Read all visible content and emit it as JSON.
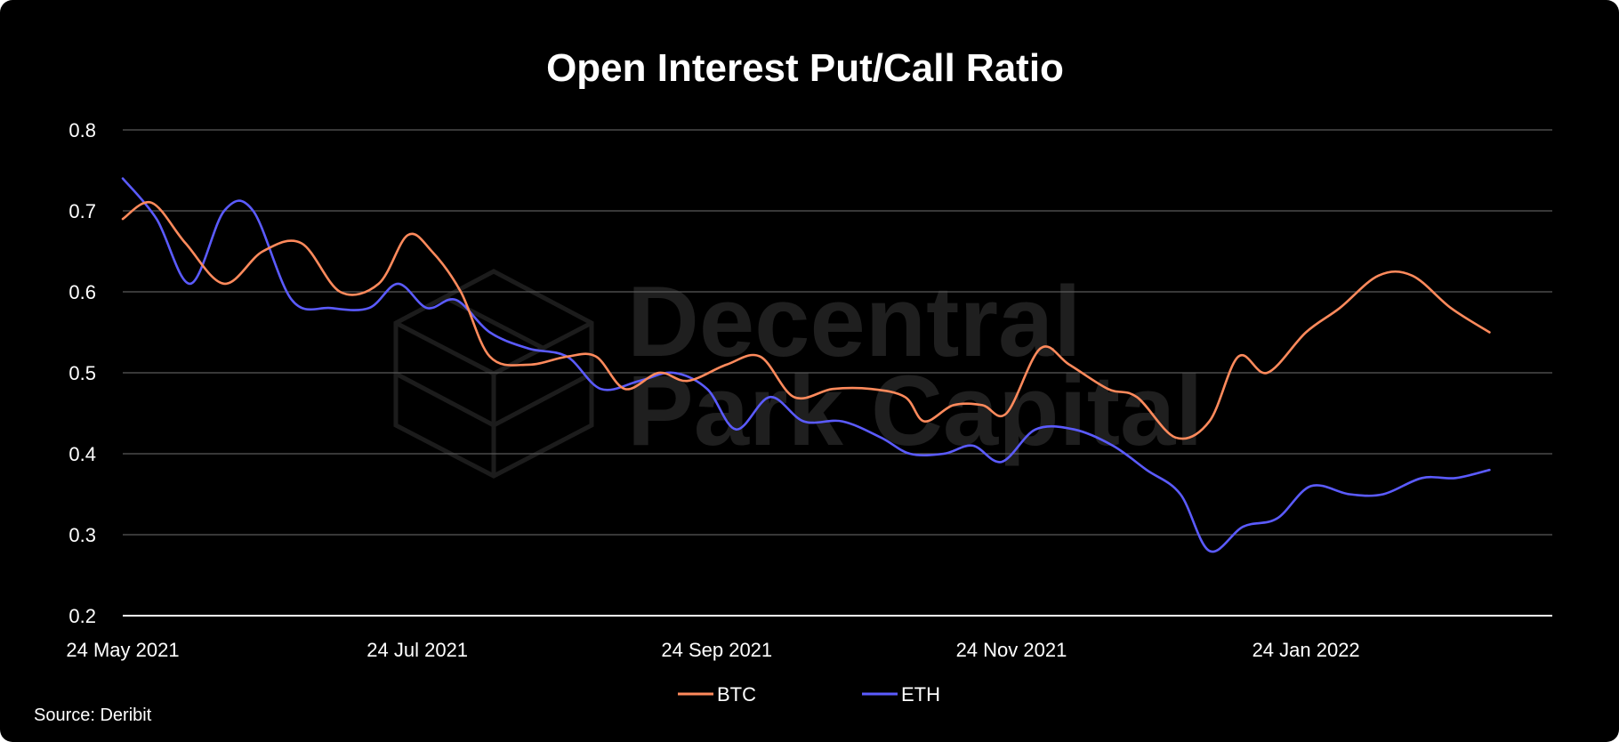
{
  "chart_data": {
    "type": "line",
    "title": "Open Interest Put/Call Ratio",
    "xlabel": "",
    "ylabel": "",
    "ylim": [
      0.2,
      0.8
    ],
    "yticks": [
      "0.2",
      "0.3",
      "0.4",
      "0.5",
      "0.6",
      "0.7",
      "0.8"
    ],
    "xlim": [
      "2021-05-24",
      "2022-03-16"
    ],
    "xticks": [
      {
        "date": "2021-05-24",
        "label": "24 May 2021"
      },
      {
        "date": "2021-07-24",
        "label": "24 Jul 2021"
      },
      {
        "date": "2021-09-24",
        "label": "24 Sep 2021"
      },
      {
        "date": "2021-11-24",
        "label": "24 Nov 2021"
      },
      {
        "date": "2022-01-24",
        "label": "24 Jan 2022"
      }
    ],
    "grid": true,
    "legend": "bottom-center",
    "series": [
      {
        "name": "BTC",
        "color": "#ff8a5c",
        "points": [
          [
            "2021-05-24",
            0.69
          ],
          [
            "2021-05-30",
            0.71
          ],
          [
            "2021-06-06",
            0.66
          ],
          [
            "2021-06-14",
            0.61
          ],
          [
            "2021-06-22",
            0.65
          ],
          [
            "2021-06-30",
            0.66
          ],
          [
            "2021-07-08",
            0.6
          ],
          [
            "2021-07-16",
            0.61
          ],
          [
            "2021-07-22",
            0.67
          ],
          [
            "2021-07-27",
            0.65
          ],
          [
            "2021-08-02",
            0.6
          ],
          [
            "2021-08-08",
            0.52
          ],
          [
            "2021-08-16",
            0.51
          ],
          [
            "2021-08-24",
            0.52
          ],
          [
            "2021-08-30",
            0.52
          ],
          [
            "2021-09-05",
            0.48
          ],
          [
            "2021-09-12",
            0.5
          ],
          [
            "2021-09-18",
            0.49
          ],
          [
            "2021-09-26",
            0.51
          ],
          [
            "2021-10-03",
            0.52
          ],
          [
            "2021-10-10",
            0.47
          ],
          [
            "2021-10-18",
            0.48
          ],
          [
            "2021-10-26",
            0.48
          ],
          [
            "2021-11-02",
            0.47
          ],
          [
            "2021-11-06",
            0.44
          ],
          [
            "2021-11-12",
            0.46
          ],
          [
            "2021-11-18",
            0.46
          ],
          [
            "2021-11-23",
            0.45
          ],
          [
            "2021-11-30",
            0.53
          ],
          [
            "2021-12-06",
            0.51
          ],
          [
            "2021-12-14",
            0.48
          ],
          [
            "2021-12-20",
            0.47
          ],
          [
            "2021-12-28",
            0.42
          ],
          [
            "2022-01-04",
            0.44
          ],
          [
            "2022-01-10",
            0.52
          ],
          [
            "2022-01-16",
            0.5
          ],
          [
            "2022-01-24",
            0.55
          ],
          [
            "2022-01-31",
            0.58
          ],
          [
            "2022-02-08",
            0.62
          ],
          [
            "2022-02-15",
            0.62
          ],
          [
            "2022-02-23",
            0.58
          ],
          [
            "2022-03-03",
            0.55
          ]
        ]
      },
      {
        "name": "ETH",
        "color": "#5b5bff",
        "points": [
          [
            "2021-05-24",
            0.74
          ],
          [
            "2021-05-31",
            0.69
          ],
          [
            "2021-06-07",
            0.61
          ],
          [
            "2021-06-14",
            0.7
          ],
          [
            "2021-06-20",
            0.7
          ],
          [
            "2021-06-28",
            0.59
          ],
          [
            "2021-07-06",
            0.58
          ],
          [
            "2021-07-14",
            0.58
          ],
          [
            "2021-07-20",
            0.61
          ],
          [
            "2021-07-26",
            0.58
          ],
          [
            "2021-08-01",
            0.59
          ],
          [
            "2021-08-08",
            0.55
          ],
          [
            "2021-08-16",
            0.53
          ],
          [
            "2021-08-24",
            0.52
          ],
          [
            "2021-08-31",
            0.48
          ],
          [
            "2021-09-08",
            0.49
          ],
          [
            "2021-09-15",
            0.5
          ],
          [
            "2021-09-22",
            0.48
          ],
          [
            "2021-09-28",
            0.43
          ],
          [
            "2021-10-05",
            0.47
          ],
          [
            "2021-10-12",
            0.44
          ],
          [
            "2021-10-20",
            0.44
          ],
          [
            "2021-10-28",
            0.42
          ],
          [
            "2021-11-03",
            0.4
          ],
          [
            "2021-11-10",
            0.4
          ],
          [
            "2021-11-16",
            0.41
          ],
          [
            "2021-11-22",
            0.39
          ],
          [
            "2021-11-29",
            0.43
          ],
          [
            "2021-12-07",
            0.43
          ],
          [
            "2021-12-15",
            0.41
          ],
          [
            "2021-12-22",
            0.38
          ],
          [
            "2021-12-29",
            0.35
          ],
          [
            "2022-01-04",
            0.28
          ],
          [
            "2022-01-11",
            0.31
          ],
          [
            "2022-01-18",
            0.32
          ],
          [
            "2022-01-25",
            0.36
          ],
          [
            "2022-02-02",
            0.35
          ],
          [
            "2022-02-09",
            0.35
          ],
          [
            "2022-02-17",
            0.37
          ],
          [
            "2022-02-24",
            0.37
          ],
          [
            "2022-03-03",
            0.38
          ]
        ]
      }
    ],
    "source": "Source: Deribit",
    "watermark": {
      "line1": "Decentral",
      "line2": "Park Capital"
    }
  }
}
